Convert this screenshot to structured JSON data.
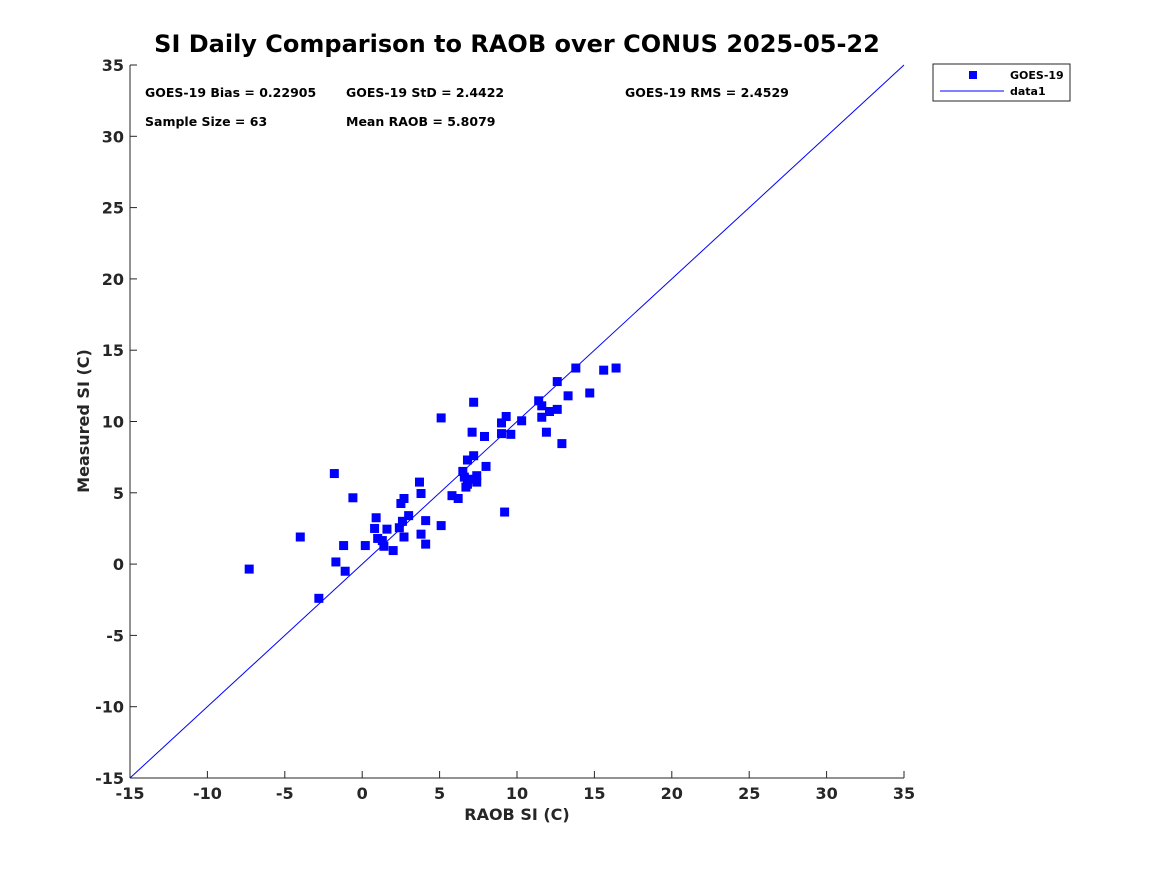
{
  "chart_data": {
    "type": "scatter",
    "title": "SI Daily Comparison to RAOB over CONUS 2025-05-22",
    "xlabel": "RAOB SI (C)",
    "ylabel": "Measured SI (C)",
    "xlim": [
      -15,
      35
    ],
    "ylim": [
      -15,
      35
    ],
    "xticks": [
      -15,
      -10,
      -5,
      0,
      5,
      10,
      15,
      20,
      25,
      30,
      35
    ],
    "yticks": [
      -15,
      -10,
      -5,
      0,
      5,
      10,
      15,
      20,
      25,
      30,
      35
    ],
    "marker_color": "#0000ff",
    "line_color": "#0000ff",
    "legend": {
      "position": "outside-top-right",
      "entries": [
        "GOES-19",
        "data1"
      ]
    },
    "annotations": [
      "GOES-19 Bias = 0.22905",
      "GOES-19 StD = 2.4422",
      "GOES-19 RMS = 2.4529",
      "Sample Size = 63",
      "Mean RAOB = 5.8079"
    ],
    "series": [
      {
        "name": "GOES-19",
        "kind": "scatter",
        "marker": "square",
        "points": [
          [
            -7.3,
            -0.35
          ],
          [
            -4.0,
            1.9
          ],
          [
            -2.8,
            -2.4
          ],
          [
            -1.8,
            6.35
          ],
          [
            -1.7,
            0.15
          ],
          [
            -1.2,
            1.3
          ],
          [
            -1.1,
            -0.5
          ],
          [
            -0.6,
            4.65
          ],
          [
            0.2,
            1.3
          ],
          [
            0.8,
            2.5
          ],
          [
            0.9,
            3.25
          ],
          [
            1.0,
            1.8
          ],
          [
            1.3,
            1.65
          ],
          [
            1.4,
            1.25
          ],
          [
            1.6,
            2.45
          ],
          [
            2.0,
            0.95
          ],
          [
            2.4,
            2.55
          ],
          [
            2.5,
            4.25
          ],
          [
            2.6,
            3.0
          ],
          [
            2.7,
            4.6
          ],
          [
            2.7,
            1.9
          ],
          [
            3.0,
            3.4
          ],
          [
            3.7,
            5.75
          ],
          [
            3.8,
            4.95
          ],
          [
            3.8,
            2.1
          ],
          [
            4.1,
            3.05
          ],
          [
            4.1,
            1.4
          ],
          [
            5.1,
            2.7
          ],
          [
            5.1,
            10.25
          ],
          [
            5.8,
            4.8
          ],
          [
            6.2,
            4.6
          ],
          [
            6.5,
            6.5
          ],
          [
            6.6,
            6.1
          ],
          [
            6.7,
            5.4
          ],
          [
            6.8,
            5.6
          ],
          [
            6.8,
            7.3
          ],
          [
            7.0,
            5.95
          ],
          [
            7.1,
            9.25
          ],
          [
            7.2,
            11.35
          ],
          [
            7.2,
            7.6
          ],
          [
            7.4,
            5.75
          ],
          [
            7.4,
            6.2
          ],
          [
            7.9,
            8.95
          ],
          [
            8.0,
            6.85
          ],
          [
            9.0,
            9.9
          ],
          [
            9.0,
            9.15
          ],
          [
            9.2,
            3.65
          ],
          [
            9.3,
            10.35
          ],
          [
            9.6,
            9.1
          ],
          [
            10.3,
            10.05
          ],
          [
            11.4,
            11.45
          ],
          [
            11.6,
            10.3
          ],
          [
            11.6,
            11.1
          ],
          [
            11.9,
            9.25
          ],
          [
            12.1,
            10.7
          ],
          [
            12.6,
            12.8
          ],
          [
            12.6,
            10.85
          ],
          [
            12.9,
            8.45
          ],
          [
            13.3,
            11.8
          ],
          [
            13.8,
            13.75
          ],
          [
            14.7,
            12.0
          ],
          [
            15.6,
            13.6
          ],
          [
            16.4,
            13.75
          ]
        ]
      },
      {
        "name": "data1",
        "kind": "line",
        "points": [
          [
            -15,
            -15
          ],
          [
            35,
            35
          ]
        ]
      }
    ]
  }
}
